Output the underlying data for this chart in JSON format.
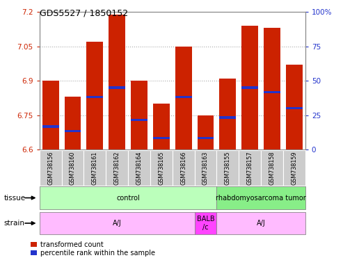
{
  "title": "GDS5527 / 1850152",
  "samples": [
    "GSM738156",
    "GSM738160",
    "GSM738161",
    "GSM738162",
    "GSM738164",
    "GSM738165",
    "GSM738166",
    "GSM738163",
    "GSM738155",
    "GSM738157",
    "GSM738158",
    "GSM738159"
  ],
  "bar_bottoms": [
    6.6,
    6.6,
    6.6,
    6.6,
    6.6,
    6.6,
    6.6,
    6.6,
    6.6,
    6.6,
    6.6,
    6.6
  ],
  "bar_tops": [
    6.9,
    6.83,
    7.07,
    7.19,
    6.9,
    6.8,
    7.05,
    6.75,
    6.91,
    7.14,
    7.13,
    6.97
  ],
  "blue_positions": [
    6.7,
    6.68,
    6.83,
    6.87,
    6.73,
    6.65,
    6.83,
    6.65,
    6.74,
    6.87,
    6.85,
    6.78
  ],
  "ylim_left": [
    6.6,
    7.2
  ],
  "ylim_right": [
    0,
    100
  ],
  "yticks_left": [
    6.6,
    6.75,
    6.9,
    7.05,
    7.2
  ],
  "yticks_right": [
    0,
    25,
    50,
    75,
    100
  ],
  "bar_color": "#cc2200",
  "blue_color": "#2233cc",
  "tissue_groups": [
    {
      "label": "control",
      "start": 0,
      "end": 8,
      "color": "#bbffbb"
    },
    {
      "label": "rhabdomyosarcoma tumor",
      "start": 8,
      "end": 12,
      "color": "#88ee88"
    }
  ],
  "strain_groups": [
    {
      "label": "A/J",
      "start": 0,
      "end": 7,
      "color": "#ffbbff"
    },
    {
      "label": "BALB\n/c",
      "start": 7,
      "end": 8,
      "color": "#ff44ff"
    },
    {
      "label": "A/J",
      "start": 8,
      "end": 12,
      "color": "#ffbbff"
    }
  ],
  "legend_red_label": "transformed count",
  "legend_blue_label": "percentile rank within the sample",
  "tissue_label": "tissue",
  "strain_label": "strain",
  "grid_color": "#aaaaaa",
  "tick_color_left": "#cc2200",
  "tick_color_right": "#2233cc",
  "bg_color": "#ffffff",
  "xticklabel_bg": "#cccccc"
}
